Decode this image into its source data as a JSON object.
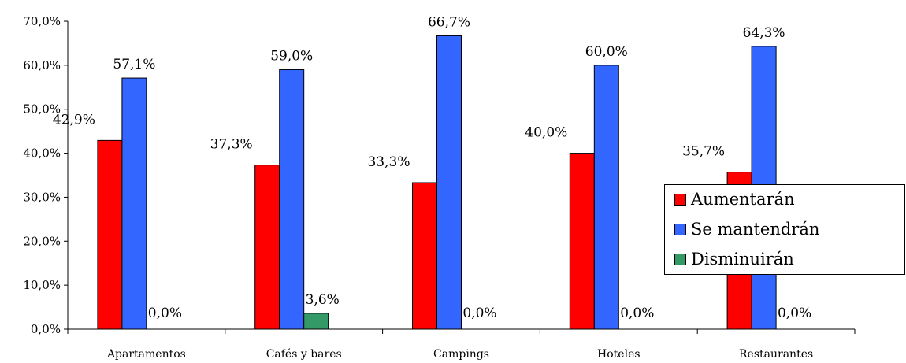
{
  "chart_data": {
    "type": "bar",
    "categories": [
      "Apartamentos",
      "Cafés y bares",
      "Campings",
      "Hoteles",
      "Restaurantes"
    ],
    "series": [
      {
        "name": "Aumentarán",
        "values": [
          42.9,
          37.3,
          33.3,
          40.0,
          35.7
        ],
        "labels": [
          "42,9%",
          "37,3%",
          "33,3%",
          "40,0%",
          "35,7%"
        ],
        "color": "#ff0000"
      },
      {
        "name": "Se mantendrán",
        "values": [
          57.1,
          59.0,
          66.7,
          60.0,
          64.3
        ],
        "labels": [
          "57,1%",
          "59,0%",
          "66,7%",
          "60,0%",
          "64,3%"
        ],
        "color": "#3366ff"
      },
      {
        "name": "Disminuirán",
        "values": [
          0.0,
          3.6,
          0.0,
          0.0,
          0.0
        ],
        "labels": [
          "0,0%",
          "3,6%",
          "0,0%",
          "0,0%",
          "0,0%"
        ],
        "color": "#339966"
      }
    ],
    "yticks": [
      "0,0%",
      "10,0%",
      "20,0%",
      "30,0%",
      "40,0%",
      "50,0%",
      "60,0%",
      "70,0%"
    ],
    "ylim": [
      0,
      70
    ],
    "grid": false,
    "legend_position": "right"
  }
}
